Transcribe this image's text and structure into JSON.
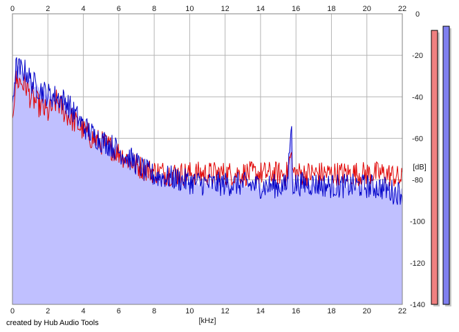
{
  "credit": "created by Hub Audio Tools",
  "chart_data": {
    "type": "line",
    "title": "",
    "xlabel": "[kHz]",
    "ylabel": "[dB]",
    "xlim": [
      0,
      22
    ],
    "ylim": [
      -140,
      0
    ],
    "xticks": [
      0,
      2,
      4,
      6,
      8,
      10,
      12,
      14,
      16,
      18,
      20,
      22
    ],
    "yticks": [
      0,
      -20,
      -40,
      -60,
      -80,
      -100,
      -120,
      -140
    ],
    "grid": true,
    "fill_area_color": "#c0c0ff",
    "series": [
      {
        "color": "#e00000",
        "x": [
          0,
          0.2,
          0.5,
          0.8,
          1.0,
          1.5,
          2.0,
          2.5,
          3.0,
          3.5,
          4.0,
          4.5,
          5.0,
          5.5,
          6.0,
          6.5,
          7.0,
          7.5,
          8.0,
          9.0,
          10.0,
          11.0,
          12.0,
          13.0,
          14.0,
          15.0,
          15.5,
          15.75,
          15.8,
          16.0,
          17.0,
          18.0,
          19.0,
          20.0,
          21.0,
          21.5,
          22.0
        ],
        "values": [
          -48,
          -32,
          -33,
          -35,
          -40,
          -44,
          -48,
          -42,
          -48,
          -52,
          -56,
          -60,
          -62,
          -64,
          -67,
          -70,
          -73,
          -75,
          -76,
          -77,
          -77,
          -77,
          -77,
          -77,
          -77,
          -77,
          -77,
          -66,
          -76,
          -77,
          -77,
          -77,
          -77,
          -77,
          -77,
          -78,
          -80
        ]
      },
      {
        "color": "#0000c8",
        "x": [
          0,
          0.2,
          0.5,
          0.8,
          1.0,
          1.5,
          2.0,
          2.5,
          3.0,
          3.5,
          4.0,
          4.5,
          5.0,
          5.5,
          6.0,
          6.5,
          7.0,
          7.5,
          8.0,
          9.0,
          10.0,
          11.0,
          12.0,
          13.0,
          14.0,
          15.0,
          15.5,
          15.75,
          15.8,
          16.0,
          17.0,
          18.0,
          19.0,
          20.0,
          21.0,
          21.5,
          22.0
        ],
        "values": [
          -42,
          -26,
          -27,
          -28,
          -32,
          -36,
          -39,
          -40,
          -42,
          -48,
          -54,
          -58,
          -61,
          -63,
          -66,
          -69,
          -72,
          -76,
          -78,
          -79,
          -81,
          -82,
          -82,
          -82,
          -83,
          -83,
          -83,
          -52,
          -82,
          -82,
          -82,
          -83,
          -83,
          -83,
          -84,
          -86,
          -86
        ]
      }
    ],
    "meters": [
      {
        "color": "#f08080",
        "value": -2
      },
      {
        "color": "#8080f0",
        "value": 0
      }
    ]
  }
}
